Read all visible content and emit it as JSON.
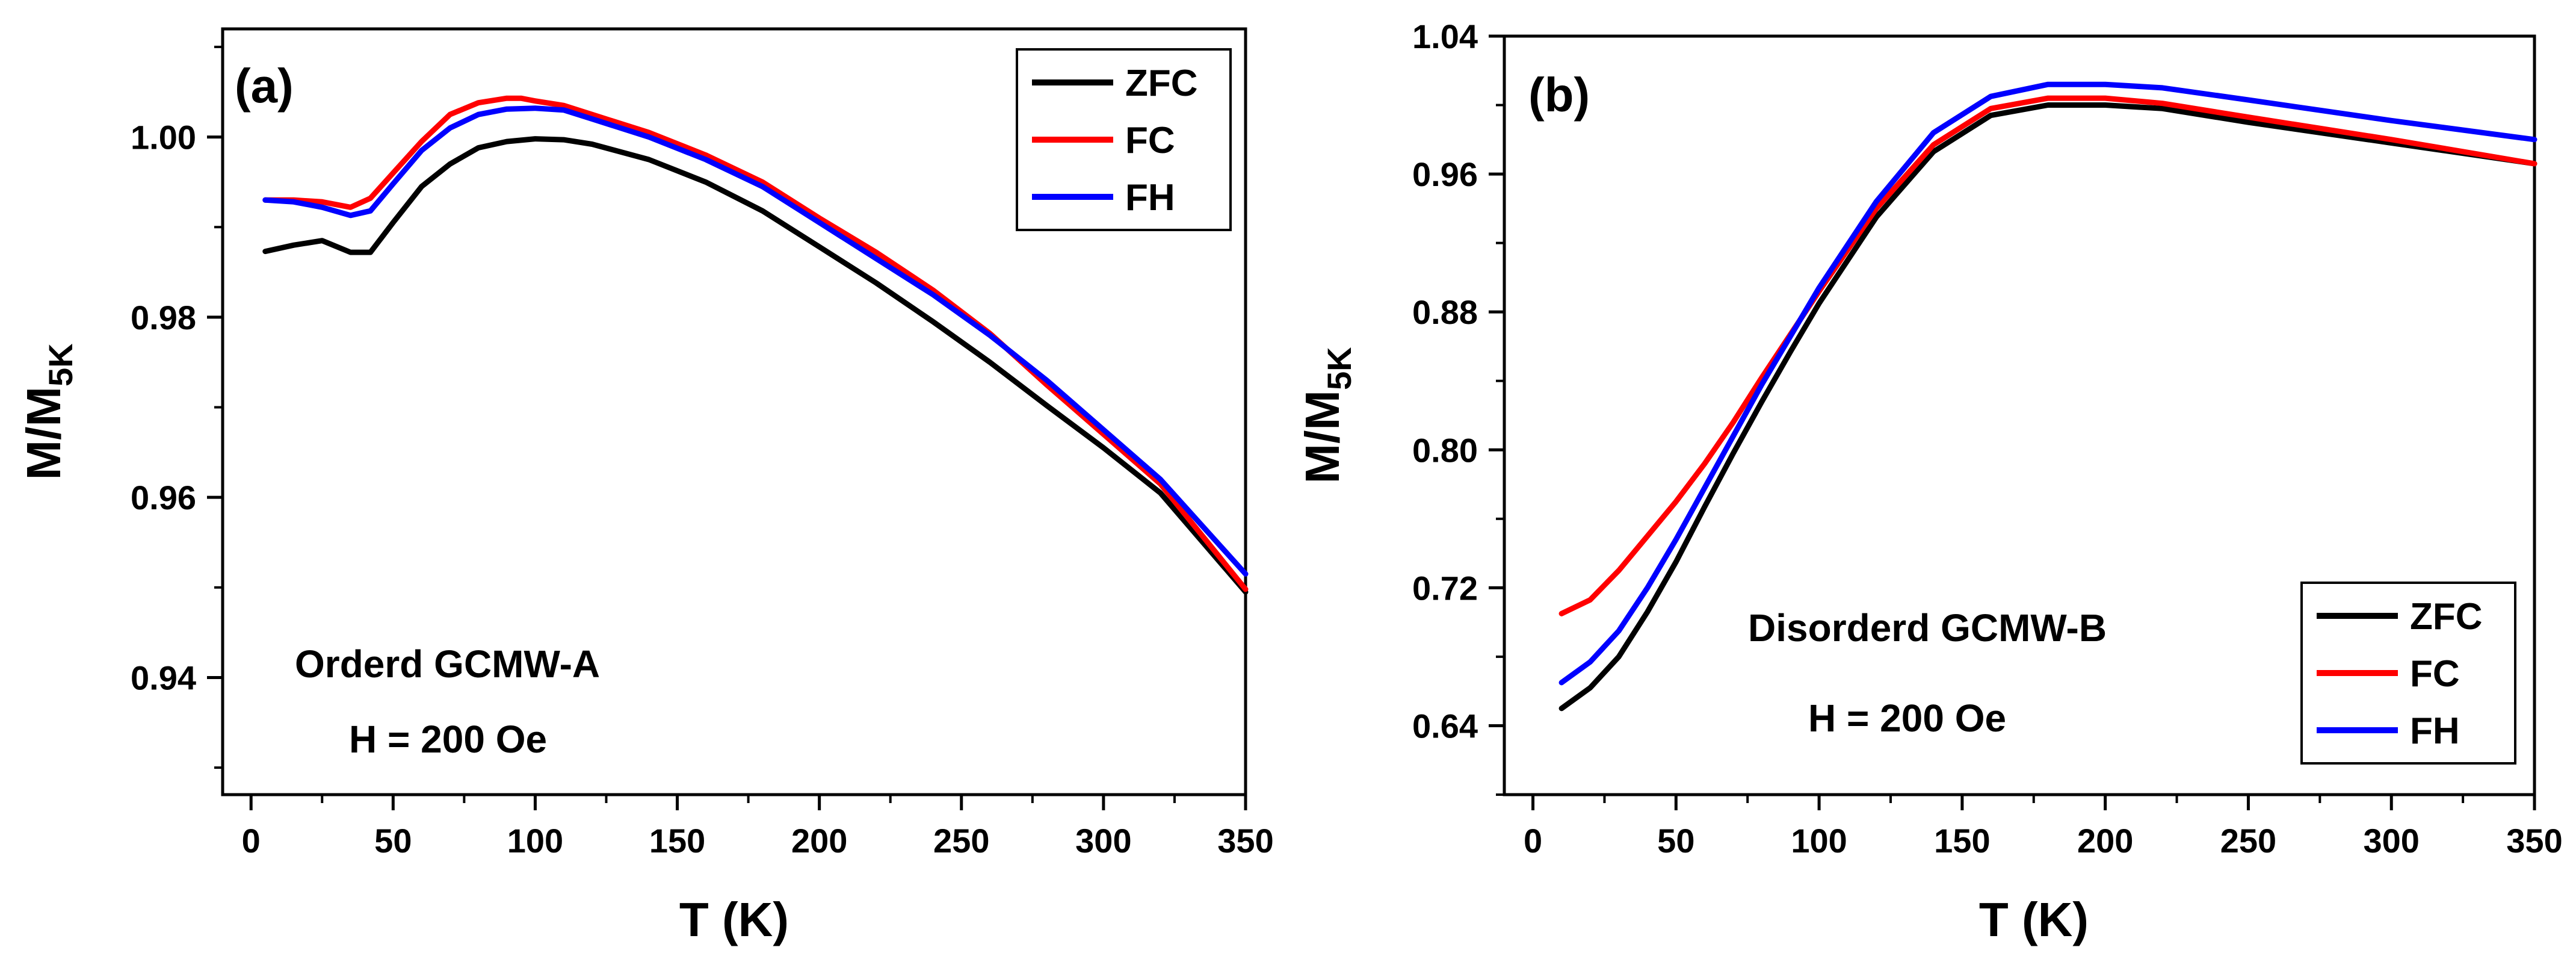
{
  "chart_data": [
    {
      "type": "line",
      "panel_label": "(a)",
      "xlabel": "T (K)",
      "ylabel": "M/M",
      "ylabel_sub": "5K",
      "xlim": [
        -10,
        350
      ],
      "ylim": [
        0.927,
        1.012
      ],
      "xticks": [
        0,
        50,
        100,
        150,
        200,
        250,
        300,
        350
      ],
      "yticks": [
        0.94,
        0.96,
        0.98,
        1.0
      ],
      "ytick_labels": [
        "0.94",
        "0.96",
        "0.98",
        "1.00"
      ],
      "annotations": [
        "Orderd GCMW-A",
        "H = 200 Oe"
      ],
      "legend_position": "top-right",
      "series": [
        {
          "name": "ZFC",
          "color": "#000000",
          "x": [
            5,
            15,
            25,
            35,
            42,
            50,
            60,
            70,
            80,
            90,
            100,
            110,
            120,
            140,
            160,
            180,
            200,
            220,
            240,
            260,
            280,
            300,
            320,
            350
          ],
          "y": [
            0.9873,
            0.988,
            0.9885,
            0.9872,
            0.9872,
            0.9905,
            0.9945,
            0.997,
            0.9988,
            0.9995,
            0.9998,
            0.9997,
            0.9992,
            0.9975,
            0.995,
            0.9918,
            0.9878,
            0.9838,
            0.9795,
            0.975,
            0.9702,
            0.9655,
            0.9605,
            0.9495
          ]
        },
        {
          "name": "FC",
          "color": "#ff0000",
          "x": [
            5,
            15,
            25,
            35,
            42,
            50,
            60,
            70,
            80,
            90,
            95,
            100,
            110,
            120,
            140,
            160,
            180,
            200,
            220,
            240,
            260,
            280,
            300,
            320,
            350
          ],
          "y": [
            0.993,
            0.993,
            0.9928,
            0.9922,
            0.9932,
            0.996,
            0.9995,
            1.0025,
            1.0038,
            1.0043,
            1.0043,
            1.004,
            1.0035,
            1.0025,
            1.0005,
            0.998,
            0.995,
            0.991,
            0.9872,
            0.983,
            0.9782,
            0.9725,
            0.967,
            0.9615,
            0.9498
          ]
        },
        {
          "name": "FH",
          "color": "#0000ff",
          "x": [
            5,
            15,
            25,
            35,
            42,
            50,
            60,
            70,
            80,
            90,
            100,
            110,
            120,
            140,
            160,
            180,
            200,
            220,
            240,
            260,
            280,
            300,
            320,
            350
          ],
          "y": [
            0.993,
            0.9928,
            0.9922,
            0.9913,
            0.9918,
            0.9948,
            0.9985,
            1.001,
            1.0025,
            1.0031,
            1.0032,
            1.003,
            1.002,
            1.0,
            0.9975,
            0.9945,
            0.9905,
            0.9865,
            0.9825,
            0.978,
            0.973,
            0.9675,
            0.962,
            0.9515
          ]
        }
      ]
    },
    {
      "type": "line",
      "panel_label": "(b)",
      "xlabel": "T (K)",
      "ylabel": "M/M",
      "ylabel_sub": "5K",
      "xlim": [
        -10,
        350
      ],
      "ylim": [
        0.6,
        1.04
      ],
      "xticks": [
        0,
        50,
        100,
        150,
        200,
        250,
        300,
        350
      ],
      "yticks": [
        0.64,
        0.72,
        0.8,
        0.88,
        0.96,
        1.04
      ],
      "ytick_labels": [
        "0.64",
        "0.72",
        "0.80",
        "0.88",
        "0.96",
        "1.04"
      ],
      "annotations": [
        "Disorderd GCMW-B",
        "H = 200 Oe"
      ],
      "legend_position": "bottom-right",
      "series": [
        {
          "name": "ZFC",
          "color": "#000000",
          "x": [
            10,
            20,
            30,
            40,
            50,
            60,
            70,
            80,
            90,
            100,
            120,
            140,
            160,
            180,
            200,
            220,
            250,
            300,
            350
          ],
          "y": [
            0.65,
            0.662,
            0.68,
            0.706,
            0.735,
            0.767,
            0.798,
            0.828,
            0.857,
            0.885,
            0.935,
            0.973,
            0.994,
            1.0,
            1.0,
            0.998,
            0.99,
            0.978,
            0.966
          ]
        },
        {
          "name": "FC",
          "color": "#ff0000",
          "x": [
            10,
            20,
            30,
            40,
            50,
            60,
            70,
            80,
            90,
            100,
            120,
            140,
            160,
            180,
            200,
            220,
            250,
            300,
            350
          ],
          "y": [
            0.705,
            0.713,
            0.73,
            0.75,
            0.77,
            0.792,
            0.816,
            0.842,
            0.867,
            0.892,
            0.94,
            0.977,
            0.998,
            1.004,
            1.004,
            1.001,
            0.993,
            0.98,
            0.966
          ]
        },
        {
          "name": "FH",
          "color": "#0000ff",
          "x": [
            10,
            20,
            30,
            40,
            50,
            60,
            70,
            80,
            90,
            100,
            120,
            140,
            160,
            180,
            200,
            220,
            250,
            300,
            350
          ],
          "y": [
            0.665,
            0.677,
            0.695,
            0.72,
            0.748,
            0.778,
            0.808,
            0.838,
            0.866,
            0.894,
            0.944,
            0.984,
            1.005,
            1.012,
            1.012,
            1.01,
            1.003,
            0.991,
            0.98
          ]
        }
      ]
    }
  ]
}
